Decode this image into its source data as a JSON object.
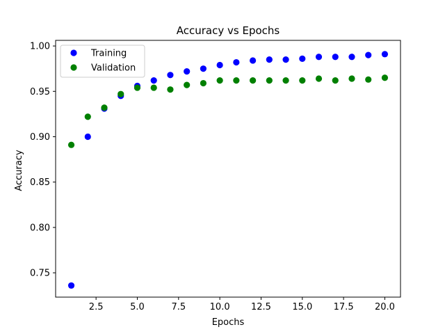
{
  "chart_data": {
    "type": "scatter",
    "title": "Accuracy vs Epochs",
    "xlabel": "Epochs",
    "ylabel": "Accuracy",
    "xlim": [
      0.05,
      20.95
    ],
    "ylim": [
      0.7232,
      1.0062
    ],
    "xticks": [
      "2.5",
      "5.0",
      "7.5",
      "10.0",
      "12.5",
      "15.0",
      "17.5",
      "20.0"
    ],
    "yticks": [
      "0.75",
      "0.80",
      "0.85",
      "0.90",
      "0.95",
      "1.00"
    ],
    "x": [
      1,
      2,
      3,
      4,
      5,
      6,
      7,
      8,
      9,
      10,
      11,
      12,
      13,
      14,
      15,
      16,
      17,
      18,
      19,
      20
    ],
    "series": [
      {
        "name": "Training",
        "color": "#0000ff",
        "values": [
          0.736,
          0.9,
          0.931,
          0.945,
          0.956,
          0.962,
          0.968,
          0.972,
          0.975,
          0.979,
          0.982,
          0.984,
          0.985,
          0.985,
          0.986,
          0.988,
          0.988,
          0.988,
          0.99,
          0.991
        ]
      },
      {
        "name": "Validation",
        "color": "#008000",
        "values": [
          0.891,
          0.922,
          0.932,
          0.947,
          0.954,
          0.954,
          0.952,
          0.957,
          0.959,
          0.962,
          0.962,
          0.962,
          0.962,
          0.962,
          0.962,
          0.964,
          0.962,
          0.964,
          0.963,
          0.965
        ]
      }
    ],
    "grid": false,
    "legend_position": "top-left"
  }
}
